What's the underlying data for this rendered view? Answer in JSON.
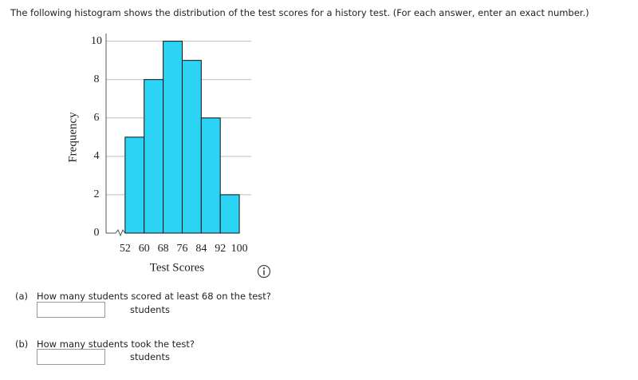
{
  "prompt": "The following histogram shows the distribution of the test scores for a history test. (For each answer, enter an exact number.)",
  "chart_data": {
    "type": "histogram",
    "bins": [
      52,
      60,
      68,
      76,
      84,
      92,
      100
    ],
    "counts": [
      5,
      8,
      10,
      9,
      6,
      2
    ],
    "color": "#2bd3f5",
    "xlabel": "Test Scores",
    "ylabel": "Frequency",
    "xlim": [
      44,
      105
    ],
    "ylim": [
      0,
      10.4
    ],
    "yticks": [
      0,
      2,
      4,
      6,
      8,
      10
    ],
    "grid": true
  },
  "questions": [
    {
      "label": "(a)",
      "text": "How many students scored at least 68 on the test?",
      "unit": "students"
    },
    {
      "label": "(b)",
      "text": "How many students took the test?",
      "unit": "students"
    }
  ]
}
